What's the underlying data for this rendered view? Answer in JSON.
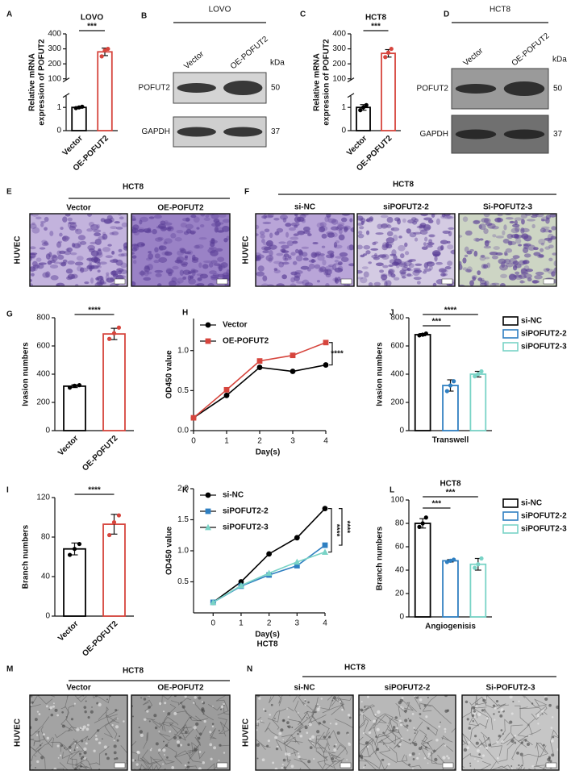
{
  "chart_data": [
    {
      "panel": "A",
      "type": "bar",
      "title": "LOVO",
      "ylabel": [
        "Relative mRNA",
        "expression of POFUT2"
      ],
      "categories": [
        "Vector",
        "OE-POFUT2"
      ],
      "category_labels": "axis",
      "colors": [
        "#000000",
        "#d6453d"
      ],
      "values": [
        1,
        280
      ],
      "errors": [
        0.03,
        25
      ],
      "points": [
        [
          0.97,
          1.0,
          1.03
        ],
        [
          250,
          290,
          300
        ]
      ],
      "ylim": [
        0,
        400
      ],
      "ybreak": [
        1.5,
        90
      ],
      "yticks": [
        0,
        1,
        100,
        200,
        300,
        400
      ],
      "significance": [
        {
          "pair": [
            0,
            1
          ],
          "label": "***"
        }
      ]
    },
    {
      "panel": "C",
      "type": "bar",
      "title": "HCT8",
      "ylabel": [
        "Relative mRNA",
        "expression of POFUT2"
      ],
      "categories": [
        "Vector",
        "OE-POFUT2"
      ],
      "category_labels": "axis",
      "colors": [
        "#000000",
        "#d6453d"
      ],
      "values": [
        1,
        270
      ],
      "errors": [
        0.12,
        25
      ],
      "points": [
        [
          0.88,
          1.0,
          1.1
        ],
        [
          245,
          275,
          300
        ]
      ],
      "ylim": [
        0,
        400
      ],
      "ybreak": [
        1.5,
        90
      ],
      "yticks": [
        0,
        1,
        100,
        200,
        300,
        400
      ],
      "significance": [
        {
          "pair": [
            0,
            1
          ],
          "label": "***"
        }
      ]
    },
    {
      "panel": "G",
      "type": "bar",
      "ylabel": "Ivasion numbers",
      "categories": [
        "Vector",
        "OE-POFUT2"
      ],
      "category_labels": "axis",
      "colors": [
        "#000000",
        "#d6453d"
      ],
      "values": [
        315,
        685
      ],
      "errors": [
        10,
        40
      ],
      "points": [
        [
          305,
          318,
          322
        ],
        [
          650,
          690,
          730
        ]
      ],
      "ylim": [
        0,
        800
      ],
      "yticks": [
        0,
        200,
        400,
        600,
        800
      ],
      "significance": [
        {
          "pair": [
            0,
            1
          ],
          "label": "****"
        }
      ]
    },
    {
      "panel": "H",
      "type": "line",
      "xlabel": "Day(s)",
      "ylabel": "OD450 value",
      "x": [
        0,
        1,
        2,
        3,
        4
      ],
      "xlim": [
        0,
        4
      ],
      "xticks": [
        0,
        1,
        2,
        3,
        4
      ],
      "ylim": [
        0,
        1.4
      ],
      "yticks": [
        {
          "value": 0,
          "label": "0.0"
        },
        0.5,
        {
          "value": 1,
          "label": "1.0"
        }
      ],
      "legend": "upper left",
      "series": [
        {
          "name": "Vector",
          "color": "#000000",
          "marker": "circle",
          "values": [
            0.16,
            0.44,
            0.79,
            0.74,
            0.82
          ]
        },
        {
          "name": "OE-POFUT2",
          "color": "#d6453d",
          "marker": "square",
          "values": [
            0.16,
            0.51,
            0.87,
            0.94,
            1.1
          ]
        }
      ],
      "significance": [
        {
          "pair": [
            0,
            1
          ],
          "label": "****"
        }
      ]
    },
    {
      "panel": "J",
      "type": "bar",
      "ylabel": "Ivasion numbers",
      "xlabel": "Transwell",
      "categories": [
        "si-NC",
        "siPOFUT2-2",
        "siPOFUT2-3"
      ],
      "category_labels": "legend",
      "colors": [
        "#000000",
        "#2f7fc1",
        "#79d3c6"
      ],
      "values": [
        680,
        320,
        400
      ],
      "errors": [
        8,
        40,
        20
      ],
      "points": [
        [
          675,
          680,
          688
        ],
        [
          280,
          320,
          350
        ],
        [
          385,
          400,
          420
        ]
      ],
      "ylim": [
        0,
        800
      ],
      "yticks": [
        0,
        200,
        400,
        600,
        800
      ],
      "significance": [
        {
          "pair": [
            0,
            2
          ],
          "label": "****"
        },
        {
          "pair": [
            0,
            1
          ],
          "label": "***"
        }
      ]
    },
    {
      "panel": "I",
      "type": "bar",
      "ylabel": "Branch numbers",
      "categories": [
        "Vector",
        "OE-POFUT2"
      ],
      "category_labels": "axis",
      "colors": [
        "#000000",
        "#d6453d"
      ],
      "values": [
        68,
        93
      ],
      "errors": [
        6,
        10
      ],
      "points": [
        [
          62,
          68,
          73
        ],
        [
          82,
          95,
          102
        ]
      ],
      "ylim": [
        0,
        120
      ],
      "yticks": [
        0,
        40,
        80,
        120
      ],
      "significance": [
        {
          "pair": [
            0,
            1
          ],
          "label": "****"
        }
      ]
    },
    {
      "panel": "K",
      "type": "line",
      "xlabel": "Day(s)",
      "subtitle": "HCT8",
      "ylabel": "OD450 value",
      "x": [
        0,
        1,
        2,
        3,
        4
      ],
      "xlim": [
        -0.7,
        4
      ],
      "xticks": [
        0,
        1,
        2,
        3,
        4
      ],
      "ylim": [
        0,
        2
      ],
      "yticks": [
        0.5,
        {
          "value": 1,
          "label": "1.0"
        },
        1.5,
        {
          "value": 2,
          "label": "2.0"
        }
      ],
      "legend": "upper left",
      "series": [
        {
          "name": "si-NC",
          "color": "#000000",
          "marker": "circle",
          "values": [
            0.17,
            0.5,
            0.95,
            1.21,
            1.68
          ]
        },
        {
          "name": "siPOFUT2-2",
          "color": "#2f7fc1",
          "marker": "square",
          "values": [
            0.17,
            0.43,
            0.61,
            0.76,
            1.09
          ]
        },
        {
          "name": "siPOFUT2-3",
          "color": "#79d3c6",
          "marker": "triangle",
          "values": [
            0.17,
            0.44,
            0.64,
            0.82,
            0.98
          ]
        }
      ],
      "significance": [
        {
          "pair": [
            0,
            2
          ],
          "label": "****"
        },
        {
          "pair": [
            0,
            1
          ],
          "label": "****"
        }
      ]
    },
    {
      "panel": "L",
      "type": "bar",
      "title": "HCT8",
      "ylabel": "Branch numbers",
      "xlabel": "Angiogenisis",
      "categories": [
        "si-NC",
        "siPOFUT2-2",
        "siPOFUT2-3"
      ],
      "category_labels": "legend",
      "colors": [
        "#000000",
        "#2f7fc1",
        "#79d3c6"
      ],
      "values": [
        80,
        48,
        45
      ],
      "errors": [
        4,
        1,
        5
      ],
      "points": [
        [
          77,
          80,
          85
        ],
        [
          47,
          48,
          49
        ],
        [
          42,
          45,
          50
        ]
      ],
      "ylim": [
        0,
        100
      ],
      "yticks": [
        0,
        20,
        40,
        60,
        80,
        100
      ],
      "significance": [
        {
          "pair": [
            0,
            2
          ],
          "label": "***"
        },
        {
          "pair": [
            0,
            1
          ],
          "label": "***"
        }
      ]
    }
  ],
  "figure_panels": [
    {
      "panel": "B",
      "type": "blot",
      "header": "LOVO",
      "lanes": [
        "Vector",
        "OE-POFUT2"
      ],
      "unit": "kDa",
      "bands": [
        {
          "label": "POFUT2",
          "size": 50
        },
        {
          "label": "GAPDH",
          "size": 37
        }
      ]
    },
    {
      "panel": "D",
      "type": "blot",
      "header": "HCT8",
      "lanes": [
        "Vector",
        "OE-POFUT2"
      ],
      "unit": "kDa",
      "bands": [
        {
          "label": "POFUT2",
          "size": 50
        },
        {
          "label": "GAPDH",
          "size": 37
        }
      ]
    },
    {
      "panel": "E",
      "type": "micrograph",
      "header": "HCT8",
      "row_label": "HUVEC",
      "conditions": [
        "Vector",
        "OE-POFUT2"
      ],
      "stain": "crystal",
      "tones": [
        "#c3b3dd",
        "#9a82c6"
      ]
    },
    {
      "panel": "F",
      "type": "micrograph",
      "header": "HCT8",
      "row_label": "HUVEC",
      "conditions": [
        "si-NC",
        "siPOFUT2-2",
        "Si-POFUT2-3"
      ],
      "stain": "crystal",
      "tones": [
        "#b9a5d8",
        "#d4cbe3",
        "#cdd5c4"
      ]
    },
    {
      "panel": "M",
      "type": "micrograph",
      "header": "HCT8",
      "row_label": "HUVEC",
      "conditions": [
        "Vector",
        "OE-POFUT2"
      ],
      "stain": "tube",
      "tones": [
        "#a3a3a3",
        "#9c9c9c"
      ]
    },
    {
      "panel": "N",
      "type": "micrograph",
      "header": "HCT8",
      "row_label": "HUVEC",
      "conditions": [
        "si-NC",
        "siPOFUT2-2",
        "Si-POFUT2-3"
      ],
      "stain": "tube",
      "tones": [
        "#b2b2b2",
        "#b8b8b8",
        "#c6c6c6"
      ]
    }
  ]
}
